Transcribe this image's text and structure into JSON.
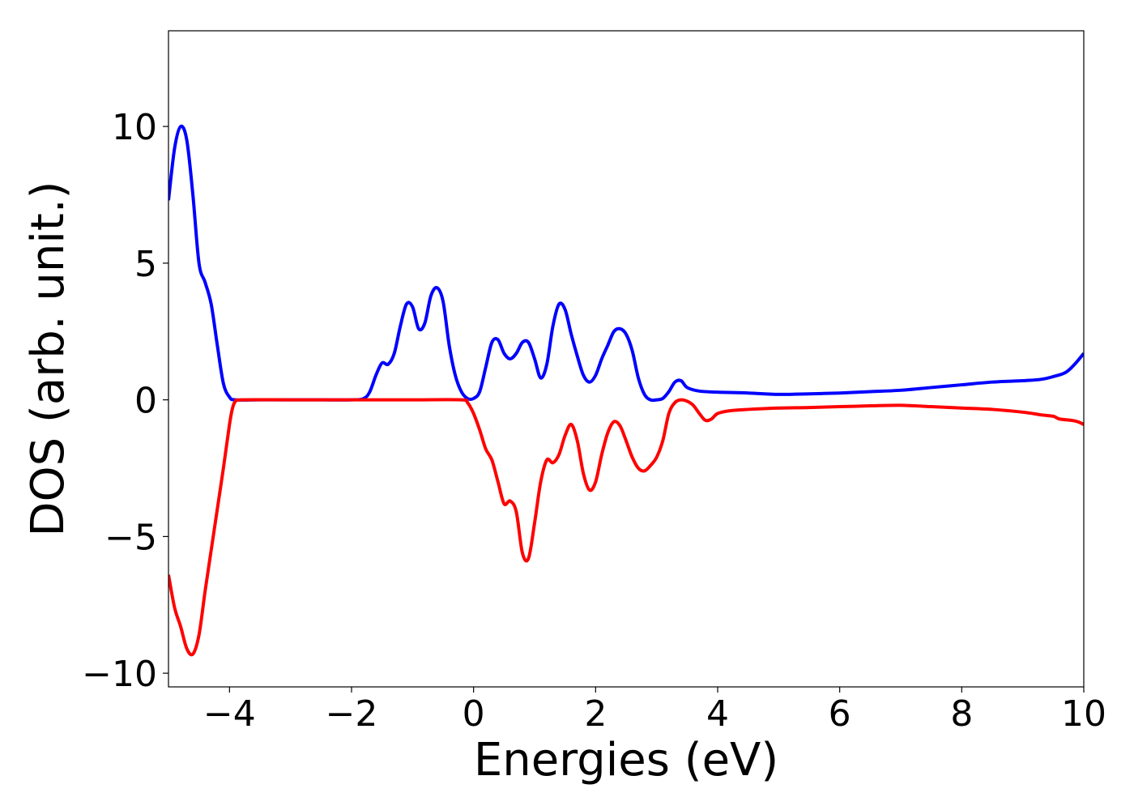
{
  "chart_data": {
    "type": "line",
    "title": "",
    "xlabel": "Energies (eV)",
    "ylabel": "DOS (arb. unit.)",
    "xlim": [
      -5,
      10
    ],
    "ylim": [
      -10.5,
      13.5
    ],
    "grid": false,
    "xticks": [
      -4,
      -2,
      0,
      2,
      4,
      6,
      8,
      10
    ],
    "xtick_labels": [
      "−4",
      "−2",
      "0",
      "2",
      "4",
      "6",
      "8",
      "10"
    ],
    "yticks": [
      -10,
      -5,
      0,
      5,
      10
    ],
    "ytick_labels": [
      "−10",
      "−5",
      "0",
      "5",
      "10"
    ],
    "series": [
      {
        "color": "#0000ff",
        "points": [
          [
            -5.0,
            7.3
          ],
          [
            -4.9,
            9.2
          ],
          [
            -4.8,
            10.0
          ],
          [
            -4.7,
            9.5
          ],
          [
            -4.6,
            7.5
          ],
          [
            -4.5,
            5.0
          ],
          [
            -4.4,
            4.3
          ],
          [
            -4.3,
            3.5
          ],
          [
            -4.2,
            2.0
          ],
          [
            -4.1,
            0.6
          ],
          [
            -4.0,
            0.1
          ],
          [
            -3.9,
            0.0
          ],
          [
            -3.5,
            0.0
          ],
          [
            -3.0,
            0.0
          ],
          [
            -2.5,
            0.0
          ],
          [
            -2.0,
            0.0
          ],
          [
            -1.8,
            0.05
          ],
          [
            -1.7,
            0.3
          ],
          [
            -1.6,
            0.9
          ],
          [
            -1.5,
            1.35
          ],
          [
            -1.4,
            1.3
          ],
          [
            -1.3,
            1.7
          ],
          [
            -1.2,
            2.7
          ],
          [
            -1.1,
            3.5
          ],
          [
            -1.0,
            3.4
          ],
          [
            -0.9,
            2.6
          ],
          [
            -0.8,
            2.8
          ],
          [
            -0.7,
            3.8
          ],
          [
            -0.6,
            4.1
          ],
          [
            -0.5,
            3.6
          ],
          [
            -0.4,
            2.0
          ],
          [
            -0.3,
            0.9
          ],
          [
            -0.2,
            0.3
          ],
          [
            -0.1,
            0.05
          ],
          [
            0.0,
            0.05
          ],
          [
            0.1,
            0.3
          ],
          [
            0.2,
            1.2
          ],
          [
            0.3,
            2.1
          ],
          [
            0.4,
            2.2
          ],
          [
            0.5,
            1.7
          ],
          [
            0.6,
            1.5
          ],
          [
            0.7,
            1.7
          ],
          [
            0.8,
            2.1
          ],
          [
            0.9,
            2.1
          ],
          [
            1.0,
            1.5
          ],
          [
            1.1,
            0.8
          ],
          [
            1.2,
            1.3
          ],
          [
            1.3,
            2.7
          ],
          [
            1.4,
            3.5
          ],
          [
            1.5,
            3.3
          ],
          [
            1.6,
            2.4
          ],
          [
            1.7,
            1.6
          ],
          [
            1.8,
            0.9
          ],
          [
            1.9,
            0.65
          ],
          [
            2.0,
            0.9
          ],
          [
            2.1,
            1.5
          ],
          [
            2.2,
            2.0
          ],
          [
            2.3,
            2.5
          ],
          [
            2.4,
            2.6
          ],
          [
            2.5,
            2.4
          ],
          [
            2.6,
            1.8
          ],
          [
            2.7,
            0.8
          ],
          [
            2.8,
            0.2
          ],
          [
            2.9,
            0.0
          ],
          [
            3.0,
            0.0
          ],
          [
            3.1,
            0.05
          ],
          [
            3.2,
            0.3
          ],
          [
            3.3,
            0.65
          ],
          [
            3.4,
            0.7
          ],
          [
            3.5,
            0.45
          ],
          [
            3.7,
            0.32
          ],
          [
            4.0,
            0.28
          ],
          [
            4.5,
            0.25
          ],
          [
            5.0,
            0.2
          ],
          [
            5.5,
            0.22
          ],
          [
            6.0,
            0.25
          ],
          [
            6.5,
            0.3
          ],
          [
            7.0,
            0.35
          ],
          [
            7.5,
            0.45
          ],
          [
            8.0,
            0.55
          ],
          [
            8.5,
            0.65
          ],
          [
            9.0,
            0.7
          ],
          [
            9.3,
            0.75
          ],
          [
            9.5,
            0.85
          ],
          [
            9.7,
            1.0
          ],
          [
            9.85,
            1.3
          ],
          [
            10.0,
            1.7
          ]
        ]
      },
      {
        "color": "#ff0000",
        "points": [
          [
            -5.0,
            -6.4
          ],
          [
            -4.9,
            -7.6
          ],
          [
            -4.8,
            -8.3
          ],
          [
            -4.7,
            -9.1
          ],
          [
            -4.6,
            -9.3
          ],
          [
            -4.5,
            -8.6
          ],
          [
            -4.4,
            -7.0
          ],
          [
            -4.3,
            -5.5
          ],
          [
            -4.2,
            -4.0
          ],
          [
            -4.1,
            -2.5
          ],
          [
            -4.0,
            -0.9
          ],
          [
            -3.95,
            -0.3
          ],
          [
            -3.9,
            -0.05
          ],
          [
            -3.8,
            0.0
          ],
          [
            -3.0,
            0.0
          ],
          [
            -2.0,
            0.0
          ],
          [
            -1.0,
            0.0
          ],
          [
            -0.2,
            0.0
          ],
          [
            -0.1,
            -0.1
          ],
          [
            0.0,
            -0.5
          ],
          [
            0.1,
            -1.1
          ],
          [
            0.2,
            -1.8
          ],
          [
            0.3,
            -2.2
          ],
          [
            0.4,
            -3.0
          ],
          [
            0.5,
            -3.8
          ],
          [
            0.6,
            -3.7
          ],
          [
            0.7,
            -4.1
          ],
          [
            0.8,
            -5.6
          ],
          [
            0.9,
            -5.8
          ],
          [
            1.0,
            -4.5
          ],
          [
            1.1,
            -3.0
          ],
          [
            1.2,
            -2.2
          ],
          [
            1.3,
            -2.3
          ],
          [
            1.4,
            -2.0
          ],
          [
            1.5,
            -1.3
          ],
          [
            1.6,
            -0.9
          ],
          [
            1.7,
            -1.5
          ],
          [
            1.8,
            -2.7
          ],
          [
            1.9,
            -3.3
          ],
          [
            2.0,
            -3.0
          ],
          [
            2.1,
            -2.0
          ],
          [
            2.2,
            -1.2
          ],
          [
            2.3,
            -0.8
          ],
          [
            2.4,
            -0.95
          ],
          [
            2.5,
            -1.5
          ],
          [
            2.6,
            -2.1
          ],
          [
            2.7,
            -2.5
          ],
          [
            2.8,
            -2.6
          ],
          [
            2.9,
            -2.4
          ],
          [
            3.0,
            -2.1
          ],
          [
            3.1,
            -1.5
          ],
          [
            3.2,
            -0.5
          ],
          [
            3.3,
            -0.1
          ],
          [
            3.4,
            0.0
          ],
          [
            3.5,
            -0.05
          ],
          [
            3.6,
            -0.2
          ],
          [
            3.7,
            -0.5
          ],
          [
            3.8,
            -0.75
          ],
          [
            3.9,
            -0.7
          ],
          [
            4.0,
            -0.5
          ],
          [
            4.2,
            -0.4
          ],
          [
            4.5,
            -0.35
          ],
          [
            5.0,
            -0.3
          ],
          [
            5.5,
            -0.28
          ],
          [
            6.0,
            -0.25
          ],
          [
            6.5,
            -0.22
          ],
          [
            7.0,
            -0.2
          ],
          [
            7.5,
            -0.25
          ],
          [
            8.0,
            -0.3
          ],
          [
            8.5,
            -0.35
          ],
          [
            9.0,
            -0.45
          ],
          [
            9.3,
            -0.55
          ],
          [
            9.5,
            -0.6
          ],
          [
            9.6,
            -0.7
          ],
          [
            9.8,
            -0.75
          ],
          [
            9.9,
            -0.8
          ],
          [
            10.0,
            -0.9
          ]
        ]
      }
    ]
  }
}
